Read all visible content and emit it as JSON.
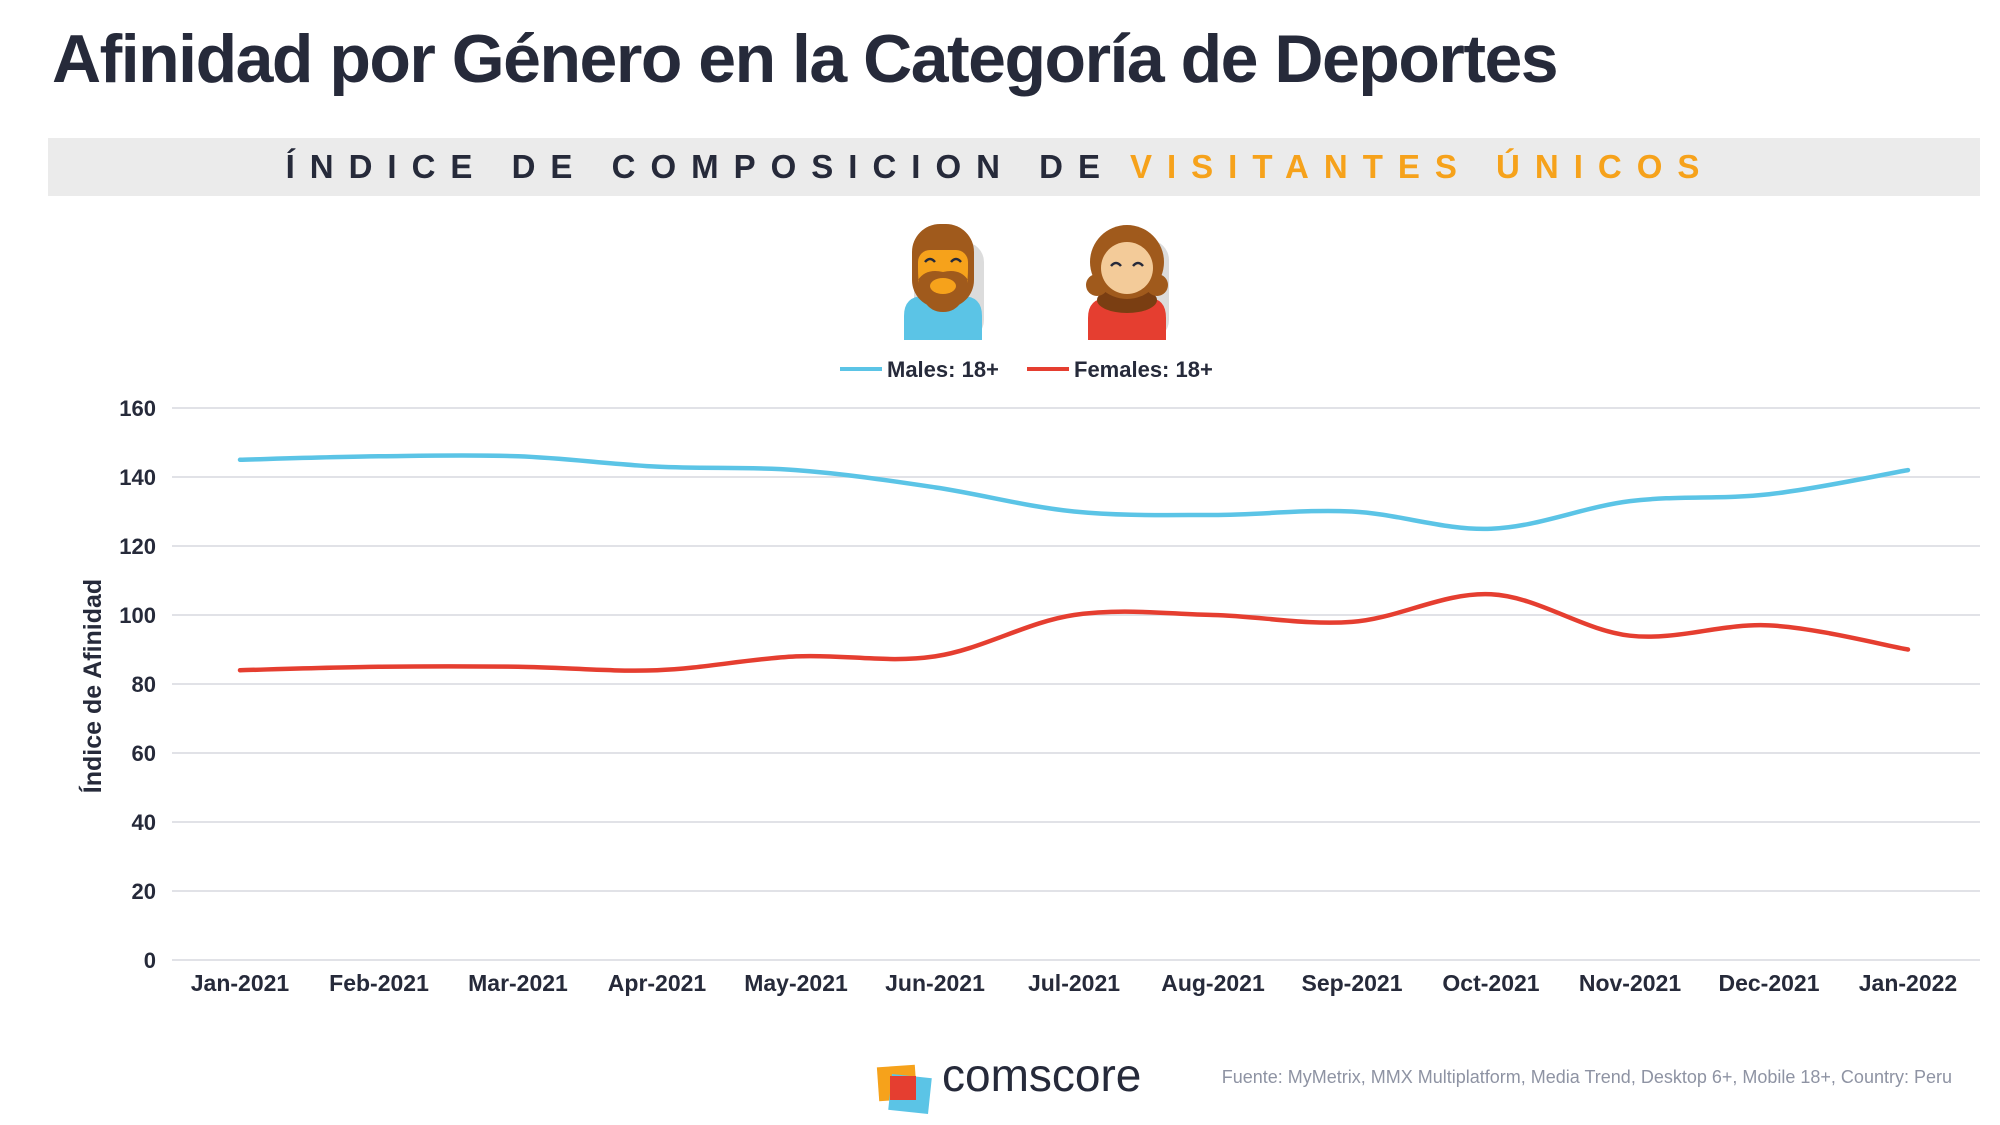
{
  "title": "Afinidad por Género en la Categoría de Deportes",
  "subtitle": {
    "dark": "ÍNDICE DE COMPOSICION DE",
    "accent": "VISITANTES ÚNICOS"
  },
  "colors": {
    "males": "#5bc4e6",
    "females": "#e53e30",
    "accent": "#f6a21b",
    "text": "#262a3a",
    "grid": "#d7d9df",
    "band": "#ebebeb"
  },
  "icons": [
    "male-avatar-icon",
    "female-avatar-icon",
    "comscore-logo-icon"
  ],
  "chart_data": {
    "type": "line",
    "x": [
      "Jan-2021",
      "Feb-2021",
      "Mar-2021",
      "Apr-2021",
      "May-2021",
      "Jun-2021",
      "Jul-2021",
      "Aug-2021",
      "Sep-2021",
      "Oct-2021",
      "Nov-2021",
      "Dec-2021",
      "Jan-2022"
    ],
    "series": [
      {
        "name": "Males: 18+",
        "color": "#5bc4e6",
        "values": [
          145,
          146,
          146,
          143,
          142,
          137,
          130,
          129,
          130,
          125,
          133,
          135,
          142
        ]
      },
      {
        "name": "Females: 18+",
        "color": "#e53e30",
        "values": [
          84,
          85,
          85,
          84,
          88,
          88,
          100,
          100,
          98,
          106,
          94,
          97,
          90
        ]
      }
    ],
    "ylabel": "Índice de Afinidad",
    "xlabel": "",
    "ylim": [
      0,
      160
    ],
    "yticks": [
      0,
      20,
      40,
      60,
      80,
      100,
      120,
      140,
      160
    ],
    "grid": true,
    "legend": "top-center"
  },
  "footer": {
    "logo_text": "comscore",
    "source": "Fuente: MyMetrix, MMX Multiplatform, Media Trend, Desktop 6+, Mobile 18+, Country: Peru"
  }
}
